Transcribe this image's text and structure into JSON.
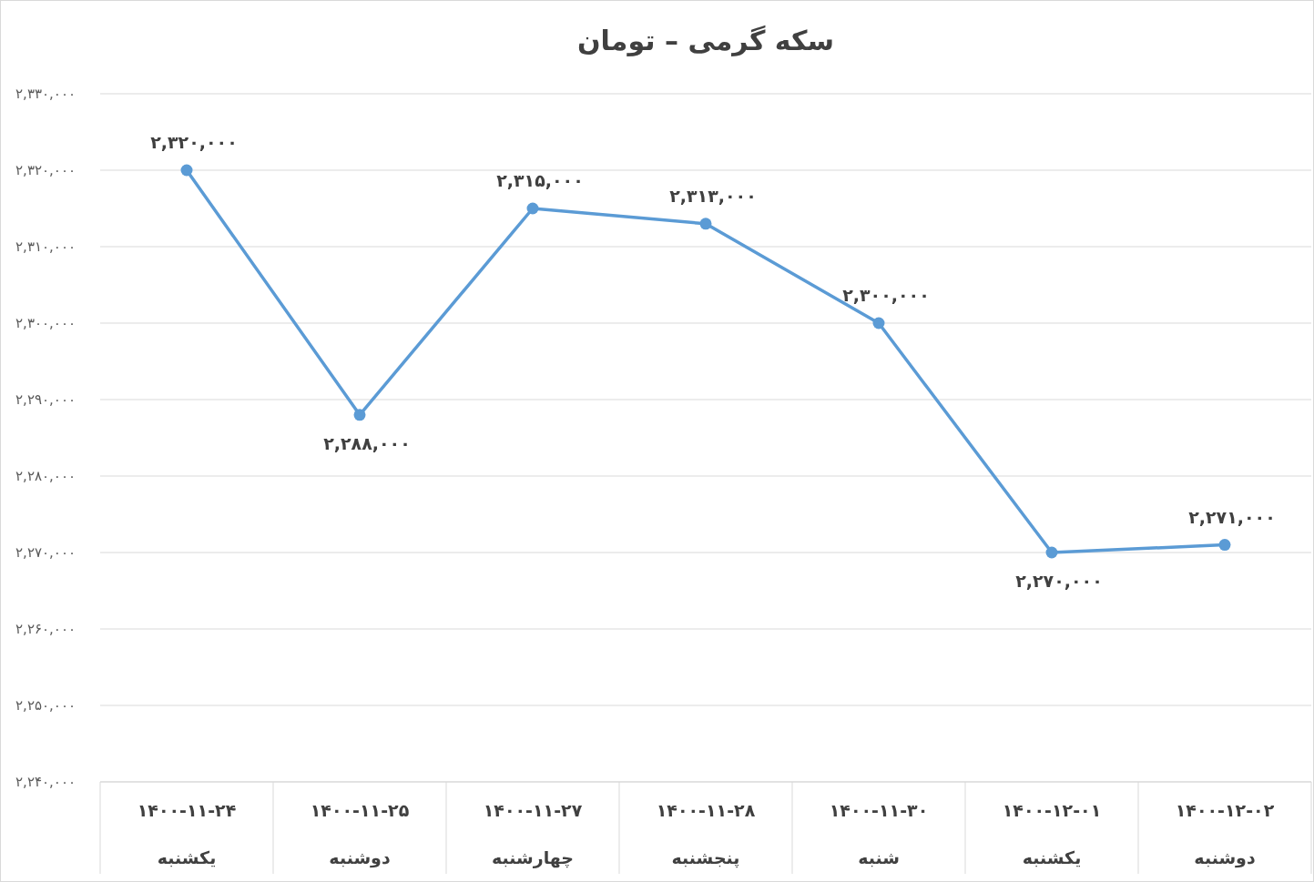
{
  "chart_data": {
    "type": "line",
    "title": "سکه گرمی – تومان",
    "categories": [
      "۱۴۰۰-۱۱-۲۴\nیکشنبه",
      "۱۴۰۰-۱۱-۲۵\nدوشنبه",
      "۱۴۰۰-۱۱-۲۷\nچهارشنبه",
      "۱۴۰۰-۱۱-۲۸\nپنجشنبه",
      "۱۴۰۰-۱۱-۳۰\nشنبه",
      "۱۴۰۰-۱۲-۰۱\nیکشنبه",
      "۱۴۰۰-۱۲-۰۲\nدوشنبه"
    ],
    "series": [
      {
        "color": "#5b9bd5",
        "values": [
          2320000,
          2288000,
          2315000,
          2313000,
          2300000,
          2270000,
          2271000
        ],
        "value_labels": [
          "۲,۳۲۰,۰۰۰",
          "۲,۲۸۸,۰۰۰",
          "۲,۳۱۵,۰۰۰",
          "۲,۳۱۳,۰۰۰",
          "۲,۳۰۰,۰۰۰",
          "۲,۲۷۰,۰۰۰",
          "۲,۲۷۱,۰۰۰"
        ]
      }
    ],
    "ylim": [
      2240000,
      2330000
    ],
    "yticks": [
      {
        "value": 2240000,
        "label": "۲,۲۴۰,۰۰۰"
      },
      {
        "value": 2250000,
        "label": "۲,۲۵۰,۰۰۰"
      },
      {
        "value": 2260000,
        "label": "۲,۲۶۰,۰۰۰"
      },
      {
        "value": 2270000,
        "label": "۲,۲۷۰,۰۰۰"
      },
      {
        "value": 2280000,
        "label": "۲,۲۸۰,۰۰۰"
      },
      {
        "value": 2290000,
        "label": "۲,۲۹۰,۰۰۰"
      },
      {
        "value": 2300000,
        "label": "۲,۳۰۰,۰۰۰"
      },
      {
        "value": 2310000,
        "label": "۲,۳۱۰,۰۰۰"
      },
      {
        "value": 2320000,
        "label": "۲,۳۲۰,۰۰۰"
      },
      {
        "value": 2330000,
        "label": "۲,۳۳۰,۰۰۰"
      }
    ],
    "grid": "y",
    "marker": "circle",
    "line_style": "solid"
  }
}
